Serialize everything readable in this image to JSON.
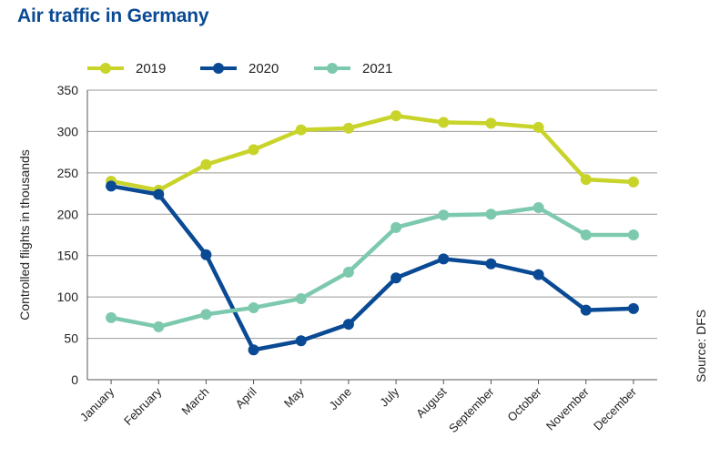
{
  "chart_data": {
    "type": "line",
    "title": "Air traffic in Germany",
    "source": "Source: DFS",
    "xlabel": "",
    "ylabel": "Controlled flights in thousands",
    "ylim": [
      0,
      350
    ],
    "yticks": [
      0,
      50,
      100,
      150,
      200,
      250,
      300,
      350
    ],
    "grid": true,
    "legend": "top",
    "categories": [
      "January",
      "February",
      "March",
      "April",
      "May",
      "June",
      "July",
      "August",
      "September",
      "October",
      "November",
      "December"
    ],
    "series": [
      {
        "name": "2019",
        "color": "#c8d42a",
        "values": [
          240,
          229,
          260,
          278,
          302,
          304,
          319,
          311,
          310,
          305,
          242,
          239
        ]
      },
      {
        "name": "2020",
        "color": "#0a4a94",
        "values": [
          234,
          224,
          151,
          36,
          47,
          67,
          123,
          146,
          140,
          127,
          84,
          86
        ]
      },
      {
        "name": "2021",
        "color": "#7dc9ae",
        "values": [
          75,
          64,
          79,
          87,
          98,
          130,
          184,
          199,
          200,
          208,
          175,
          175
        ]
      }
    ]
  }
}
